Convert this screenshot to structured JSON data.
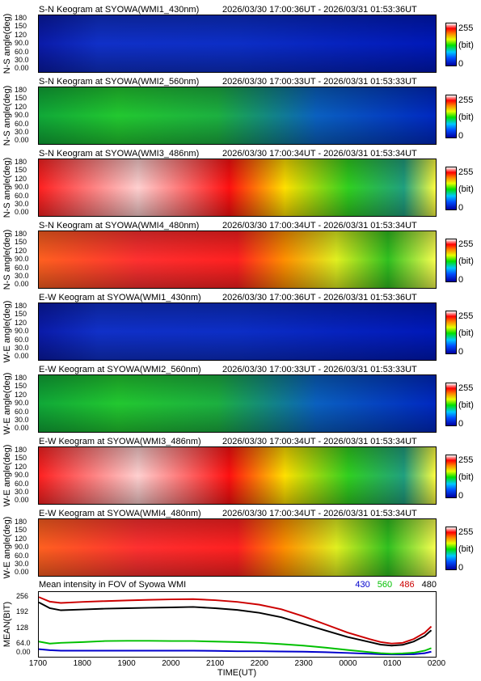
{
  "panels": [
    {
      "title": "S-N Keogram at SYOWA(WMI1_430nm)",
      "time": "2026/03/30 17:00:36UT - 2026/03/31 01:53:36UT",
      "ylabel": "N-S angle(deg)",
      "style": "blue-dim"
    },
    {
      "title": "S-N Keogram at SYOWA(WMI2_560nm)",
      "time": "2026/03/30 17:00:33UT - 2026/03/31 01:53:33UT",
      "ylabel": "N-S angle(deg)",
      "style": "green"
    },
    {
      "title": "S-N Keogram at SYOWA(WMI3_486nm)",
      "time": "2026/03/30 17:00:34UT - 2026/03/31 01:53:34UT",
      "ylabel": "N-S angle(deg)",
      "style": "hot"
    },
    {
      "title": "S-N Keogram at SYOWA(WMI4_480nm)",
      "time": "2026/03/30 17:00:34UT - 2026/03/31 01:53:34UT",
      "ylabel": "N-S angle(deg)",
      "style": "hot-red"
    },
    {
      "title": "E-W Keogram at SYOWA(WMI1_430nm)",
      "time": "2026/03/30 17:00:36UT - 2026/03/31 01:53:36UT",
      "ylabel": "W-E angle(deg)",
      "style": "blue-dim"
    },
    {
      "title": "E-W Keogram at SYOWA(WMI2_560nm)",
      "time": "2026/03/30 17:00:33UT - 2026/03/31 01:53:33UT",
      "ylabel": "W-E angle(deg)",
      "style": "green"
    },
    {
      "title": "E-W Keogram at SYOWA(WMI3_486nm)",
      "time": "2026/03/30 17:00:34UT - 2026/03/31 01:53:34UT",
      "ylabel": "W-E angle(deg)",
      "style": "hot"
    },
    {
      "title": "E-W Keogram at SYOWA(WMI4_480nm)",
      "time": "2026/03/30 17:00:34UT - 2026/03/31 01:53:34UT",
      "ylabel": "W-E angle(deg)",
      "style": "hot-red"
    }
  ],
  "yticks": [
    "180",
    "150",
    "120",
    "90.0",
    "60.0",
    "30.0",
    "0.00"
  ],
  "colorbar": {
    "max": "255",
    "unit": "(bit)",
    "min": "0"
  },
  "chart_data": {
    "type": "line",
    "title": "Mean intensity in FOV of Syowa WMI",
    "xlabel": "TIME(UT)",
    "ylabel": "MEAN(BIT)",
    "ylim": [
      0,
      256
    ],
    "yticks": [
      "256",
      "192",
      "128",
      "64.0",
      "0.00"
    ],
    "xticks": [
      "1700",
      "1800",
      "1900",
      "2000",
      "2100",
      "2200",
      "2300",
      "0000",
      "0100",
      "0200"
    ],
    "x": [
      17.0,
      17.25,
      17.5,
      18.0,
      18.5,
      19.0,
      19.5,
      20.0,
      20.5,
      21.0,
      21.5,
      22.0,
      22.5,
      23.0,
      23.5,
      24.0,
      24.5,
      24.75,
      25.0,
      25.25,
      25.5,
      25.75,
      25.9
    ],
    "series": [
      {
        "name": "430",
        "color": "#0000cc",
        "values": [
          30,
          26,
          24,
          24,
          24,
          24,
          24,
          24,
          24,
          23,
          22,
          22,
          21,
          20,
          18,
          15,
          12,
          10,
          9,
          9,
          10,
          14,
          20
        ]
      },
      {
        "name": "560",
        "color": "#00c000",
        "values": [
          60,
          52,
          55,
          58,
          62,
          63,
          63,
          62,
          62,
          60,
          58,
          55,
          50,
          44,
          36,
          27,
          18,
          14,
          12,
          13,
          16,
          24,
          34
        ]
      },
      {
        "name": "486",
        "color": "#cc0000",
        "values": [
          236,
          218,
          213,
          217,
          220,
          223,
          225,
          227,
          228,
          224,
          217,
          206,
          188,
          160,
          128,
          96,
          70,
          58,
          52,
          55,
          70,
          95,
          120
        ]
      },
      {
        "name": "480",
        "color": "#000000",
        "values": [
          215,
          192,
          184,
          187,
          190,
          192,
          194,
          195,
          197,
          192,
          185,
          174,
          156,
          130,
          104,
          78,
          58,
          48,
          44,
          47,
          60,
          82,
          105
        ]
      }
    ]
  }
}
